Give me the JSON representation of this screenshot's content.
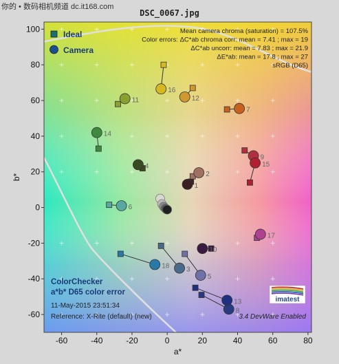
{
  "watermark": "你的 • 数码相机频道 dc.it168.com",
  "chart_data": {
    "type": "scatter",
    "title": "DSC_0067.jpg",
    "xlabel": "a*",
    "ylabel": "b*",
    "xlim": [
      -70,
      82
    ],
    "ylim": [
      -70,
      104
    ],
    "xticks": [
      -60,
      -40,
      -20,
      0,
      20,
      40,
      60,
      80
    ],
    "yticks": [
      -60,
      -40,
      -20,
      0,
      20,
      40,
      60,
      80,
      100
    ],
    "grid": false,
    "legend": {
      "position": "top-left",
      "ideal": "Ideal",
      "camera": "Camera"
    },
    "legend_colors": {
      "ideal": "#1b6f6f",
      "camera": "#1b4f8f"
    },
    "stats_lines": [
      "Mean camera chroma (saturation) = 107.5%",
      "Color errors:  ΔC*ab chroma corr:  mean = 7.41 ;  max = 19",
      "ΔC*ab uncorr:  mean = 7.83 ;  max = 21.9",
      "ΔE*ab:  mean = 17.8 ;  max = 27",
      "sRGB (D65)"
    ],
    "info_title": [
      "ColorChecker",
      "a*b* D65 color error"
    ],
    "info_lines": [
      "11-May-2015 23:51:34",
      "Reference: X-Rite (default) (new)"
    ],
    "version": "3.4  DevWare Enabled",
    "logo_text": "imatest",
    "patches": [
      {
        "id": "1",
        "ideal": [
          13.5,
          14.5
        ],
        "camera": [
          11.5,
          13
        ],
        "color": "#3a2020"
      },
      {
        "id": "2",
        "ideal": [
          14.5,
          17.5
        ],
        "camera": [
          18,
          19.5
        ],
        "color": "#a07060"
      },
      {
        "id": "3",
        "ideal": [
          -3.5,
          -21.5
        ],
        "camera": [
          7,
          -34
        ],
        "color": "#4a6a8c"
      },
      {
        "id": "4",
        "ideal": [
          -14,
          22
        ],
        "camera": [
          -16.5,
          24
        ],
        "color": "#3a4a20"
      },
      {
        "id": "5",
        "ideal": [
          10,
          -26
        ],
        "camera": [
          19,
          -38
        ],
        "color": "#7070a8"
      },
      {
        "id": "6",
        "ideal": [
          -33,
          1.5
        ],
        "camera": [
          -26,
          1
        ],
        "color": "#58a8a0"
      },
      {
        "id": "7",
        "ideal": [
          34,
          55
        ],
        "camera": [
          41,
          55.5
        ],
        "color": "#c86020"
      },
      {
        "id": "8",
        "ideal": [
          19.5,
          -49
        ],
        "camera": [
          35,
          -57
        ],
        "color": "#2a3a80"
      },
      {
        "id": "9",
        "ideal": [
          44,
          32
        ],
        "camera": [
          49,
          29
        ],
        "color": "#b03040"
      },
      {
        "id": "10",
        "ideal": [
          25,
          -23
        ],
        "camera": [
          20,
          -23
        ],
        "color": "#3a1a40"
      },
      {
        "id": "11",
        "ideal": [
          -28,
          58
        ],
        "camera": [
          -24,
          61
        ],
        "color": "#8aa030"
      },
      {
        "id": "12",
        "ideal": [
          14.5,
          67
        ],
        "camera": [
          10,
          62
        ],
        "color": "#d09830"
      },
      {
        "id": "13",
        "ideal": [
          16,
          -45
        ],
        "camera": [
          34,
          -52
        ],
        "color": "#203080"
      },
      {
        "id": "14",
        "ideal": [
          -39,
          33
        ],
        "camera": [
          -40,
          42
        ],
        "color": "#408a40"
      },
      {
        "id": "15",
        "ideal": [
          47,
          14
        ],
        "camera": [
          50,
          25
        ],
        "color": "#b02030"
      },
      {
        "id": "16",
        "ideal": [
          -2,
          80
        ],
        "camera": [
          -3.5,
          66.5
        ],
        "color": "#d8b820"
      },
      {
        "id": "17",
        "ideal": [
          51,
          -17
        ],
        "camera": [
          53,
          -15
        ],
        "color": "#b04090"
      },
      {
        "id": "18",
        "ideal": [
          -26.5,
          -26
        ],
        "camera": [
          -7,
          -32
        ],
        "color": "#2878a8"
      }
    ],
    "neutrals": [
      {
        "camera": [
          -4,
          5
        ],
        "color": "#d8d8d0"
      },
      {
        "camera": [
          -3,
          2
        ],
        "color": "#b8b8b8"
      },
      {
        "camera": [
          -2,
          0.5
        ],
        "color": "#888888"
      },
      {
        "camera": [
          -1,
          -0.5
        ],
        "color": "#606060"
      },
      {
        "camera": [
          -0.5,
          -1
        ],
        "color": "#404040"
      },
      {
        "camera": [
          0,
          -1.2
        ],
        "color": "#202020"
      }
    ]
  }
}
